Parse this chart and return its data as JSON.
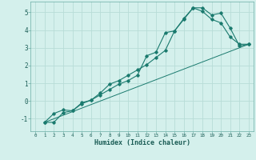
{
  "title": "",
  "xlabel": "Humidex (Indice chaleur)",
  "bg_color": "#d4f0ec",
  "grid_color": "#b8dcd7",
  "line_color": "#1a7a6e",
  "xlim": [
    -0.5,
    23.5
  ],
  "ylim": [
    -1.7,
    5.6
  ],
  "yticks": [
    -1,
    0,
    1,
    2,
    3,
    4,
    5
  ],
  "xticks": [
    0,
    1,
    2,
    3,
    4,
    5,
    6,
    7,
    8,
    9,
    10,
    11,
    12,
    13,
    14,
    15,
    16,
    17,
    18,
    19,
    20,
    21,
    22,
    23
  ],
  "line1_x": [
    1,
    2,
    3,
    4,
    5,
    6,
    7,
    8,
    9,
    10,
    11,
    12,
    13,
    14,
    15,
    16,
    17,
    18,
    19,
    20,
    21,
    22,
    23
  ],
  "line1_y": [
    -1.2,
    -1.2,
    -0.65,
    -0.55,
    -0.15,
    0.05,
    0.35,
    0.65,
    0.95,
    1.15,
    1.45,
    2.55,
    2.75,
    3.85,
    3.95,
    4.65,
    5.25,
    5.25,
    4.85,
    4.95,
    4.1,
    3.1,
    3.2
  ],
  "line2_x": [
    1,
    2,
    3,
    4,
    5,
    6,
    7,
    8,
    9,
    10,
    11,
    12,
    13,
    14,
    15,
    16,
    17,
    18,
    19,
    20,
    21,
    22,
    23
  ],
  "line2_y": [
    -1.2,
    -0.7,
    -0.5,
    -0.55,
    -0.1,
    0.05,
    0.45,
    0.95,
    1.15,
    1.45,
    1.75,
    2.05,
    2.45,
    2.85,
    3.95,
    4.6,
    5.25,
    5.05,
    4.6,
    4.4,
    3.6,
    3.2,
    3.2
  ],
  "line3_x": [
    1,
    23
  ],
  "line3_y": [
    -1.2,
    3.2
  ]
}
